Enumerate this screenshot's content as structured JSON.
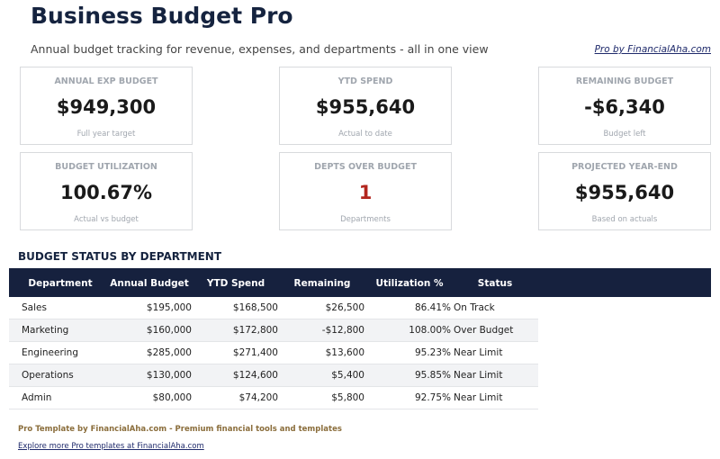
{
  "header": {
    "title": "Business Budget Pro",
    "subtitle": "Annual budget tracking for revenue, expenses, and departments - all in one view",
    "brand_link": "Pro by FinancialAha.com"
  },
  "cards": [
    {
      "label": "ANNUAL EXP BUDGET",
      "value": "$949,300",
      "note": "Full year target"
    },
    {
      "label": "YTD SPEND",
      "value": "$955,640",
      "note": "Actual to date"
    },
    {
      "label": "REMAINING BUDGET",
      "value": "-$6,340",
      "note": "Budget left"
    },
    {
      "label": "BUDGET UTILIZATION",
      "value": "100.67%",
      "note": "Actual vs budget"
    },
    {
      "label": "DEPTS OVER BUDGET",
      "value": "1",
      "note": "Departments",
      "alert": true
    },
    {
      "label": "PROJECTED YEAR-END",
      "value": "$955,640",
      "note": "Based on actuals"
    }
  ],
  "section_title": "BUDGET STATUS BY DEPARTMENT",
  "table": {
    "columns": [
      "Department",
      "Annual Budget",
      "YTD Spend",
      "Remaining",
      "Utilization %",
      "Status"
    ],
    "rows": [
      [
        "Sales",
        "$195,000",
        "$168,500",
        "$26,500",
        "86.41%",
        "On Track"
      ],
      [
        "Marketing",
        "$160,000",
        "$172,800",
        "-$12,800",
        "108.00%",
        "Over Budget"
      ],
      [
        "Engineering",
        "$285,000",
        "$271,400",
        "$13,600",
        "95.23%",
        "Near Limit"
      ],
      [
        "Operations",
        "$130,000",
        "$124,600",
        "$5,400",
        "95.85%",
        "Near Limit"
      ],
      [
        "Admin",
        "$80,000",
        "$74,200",
        "$5,800",
        "92.75%",
        "Near Limit"
      ]
    ]
  },
  "footer": {
    "tagline": "Pro Template by FinancialAha.com - Premium financial tools and templates",
    "link": "Explore more Pro templates at FinancialAha.com"
  }
}
